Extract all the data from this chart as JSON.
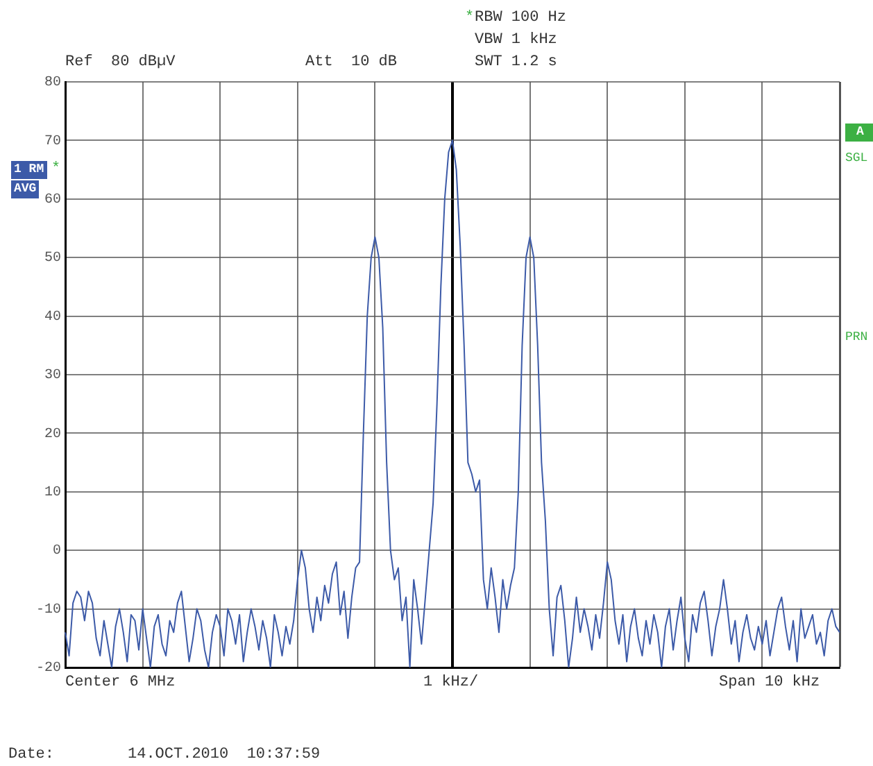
{
  "chart_data": {
    "type": "line",
    "categories": [
      null,
      null,
      null,
      null,
      null,
      null,
      null,
      null,
      null,
      null,
      null,
      null,
      null,
      null,
      null,
      null,
      null,
      null,
      null,
      null,
      null,
      null,
      null,
      null,
      null,
      null,
      null,
      null,
      null,
      null,
      null,
      null,
      null,
      null,
      null,
      null,
      null,
      null,
      null,
      null,
      null,
      null,
      null,
      null,
      null,
      null,
      null,
      null,
      null,
      null,
      null,
      null,
      null,
      null,
      null,
      null,
      null,
      null,
      null,
      null,
      null,
      null,
      null,
      null,
      null,
      null,
      null,
      null,
      null,
      null,
      null,
      null,
      null,
      null,
      null,
      null,
      null,
      null,
      null,
      null,
      null,
      null,
      null,
      null,
      null,
      null,
      null,
      null,
      null,
      null,
      null,
      null,
      null,
      null,
      null,
      null,
      null,
      null,
      null,
      null,
      null,
      null,
      null,
      null,
      null,
      null,
      null,
      null,
      null,
      null,
      null,
      null,
      null,
      null,
      null,
      null,
      null,
      null,
      null,
      null,
      null,
      null,
      null,
      null,
      null,
      null,
      null,
      null,
      null,
      null,
      null,
      null,
      null,
      null,
      null,
      null,
      null,
      null,
      null,
      null,
      null,
      null,
      null,
      null,
      null,
      null,
      null,
      null,
      null,
      null,
      null,
      null,
      null,
      null,
      null,
      null,
      null,
      null,
      null,
      null,
      null,
      null,
      null,
      null,
      null,
      null,
      null,
      null,
      null,
      null,
      null,
      null,
      null,
      null,
      null,
      null,
      null,
      null,
      null,
      null,
      null,
      null,
      null,
      null,
      null,
      null,
      null,
      null,
      null,
      null,
      null,
      null,
      null,
      null,
      null,
      null,
      null,
      null,
      null,
      null,
      null
    ],
    "series": [
      {
        "color": "#3c5aa8",
        "values": [
          -14,
          -18,
          -9,
          -7,
          -8,
          -12,
          -7,
          -9,
          -15,
          -18,
          -12,
          -16,
          -20,
          -13,
          -10,
          -14,
          -19,
          -11,
          -12,
          -17,
          -10,
          -15,
          -20,
          -13,
          -11,
          -16,
          -18,
          -12,
          -14,
          -9,
          -7,
          -13,
          -19,
          -15,
          -10,
          -12,
          -17,
          -20,
          -14,
          -11,
          -13,
          -18,
          -10,
          -12,
          -16,
          -11,
          -19,
          -14,
          -10,
          -13,
          -17,
          -12,
          -15,
          -20,
          -11,
          -14,
          -18,
          -13,
          -16,
          -12,
          -5,
          0,
          -3,
          -10,
          -14,
          -8,
          -12,
          -6,
          -9,
          -4,
          -2,
          -11,
          -7,
          -15,
          -8,
          -3,
          -2,
          20,
          40,
          50,
          53.5,
          50,
          38,
          15,
          0,
          -5,
          -3,
          -12,
          -8,
          -20,
          -5,
          -10,
          -16,
          -8,
          0,
          8,
          25,
          45,
          60,
          68,
          70,
          65,
          52,
          35,
          15,
          13,
          10,
          12,
          -5,
          -10,
          -3,
          -8,
          -14,
          -5,
          -10,
          -6,
          -3,
          10,
          35,
          50,
          53.5,
          50,
          35,
          15,
          5,
          -10,
          -18,
          -8,
          -6,
          -12,
          -20,
          -15,
          -8,
          -14,
          -10,
          -13,
          -17,
          -11,
          -15,
          -9,
          -2,
          -5,
          -12,
          -16,
          -11,
          -19,
          -13,
          -10,
          -15,
          -18,
          -12,
          -16,
          -11,
          -14,
          -20,
          -13,
          -10,
          -17,
          -12,
          -8,
          -15,
          -19,
          -11,
          -14,
          -9,
          -7,
          -12,
          -18,
          -13,
          -10,
          -5,
          -10,
          -16,
          -12,
          -19,
          -14,
          -11,
          -15,
          -17,
          -13,
          -16,
          -12,
          -18,
          -14,
          -10,
          -8,
          -13,
          -17,
          -12,
          -19,
          -10,
          -15,
          -13,
          -11,
          -16,
          -14,
          -18,
          -12,
          -10,
          -13,
          -14
        ]
      }
    ],
    "ylim": [
      -20,
      80
    ],
    "yticks": [
      80,
      70,
      60,
      50,
      40,
      30,
      20,
      10,
      0,
      -10,
      -20
    ],
    "grid": true,
    "tick_labels": "y",
    "marker": "none",
    "line_style": "solid",
    "annotations": [
      "*",
      "RBW 100 Hz",
      "VBW 1 kHz",
      "SWT 1.2 s",
      "Ref  80 dBµV",
      "Att  10 dB",
      "1 RM",
      "*",
      "AVG",
      "A",
      "SGL",
      "PRN",
      "Center 6 MHz",
      "1 kHz/",
      "Span 10 kHz",
      "Date:",
      "14.OCT.2010  10:37:59"
    ]
  }
}
